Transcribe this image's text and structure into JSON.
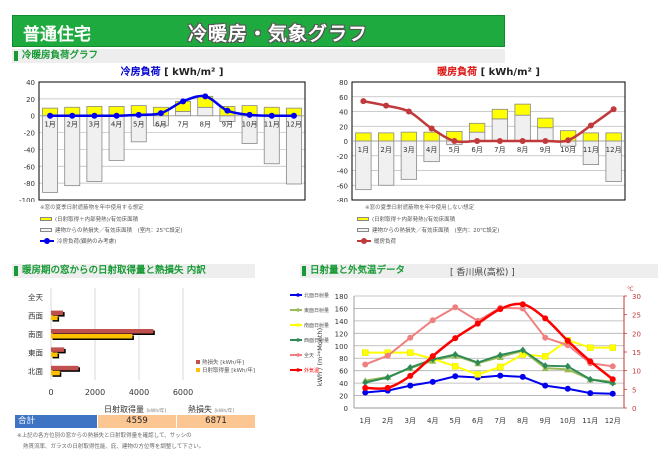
{
  "header": {
    "house_type": "普通住宅",
    "title": "冷暖房・気象グラフ"
  },
  "sections": {
    "load": "冷暖房負荷グラフ",
    "window": "暖房期の窓からの日射取得量と熱損失 内訳",
    "weather": "日射量と外気温データ",
    "location": "[ 香川県(高松) ]"
  },
  "cooling": {
    "note": "※窓の夏季日射遮蔽物を年中使用する想定",
    "legend": [
      "(日射取得＋内部発熱)/有効床面積",
      "建物からの熱損失／有効床面積　(室内：25℃設定)",
      "冷房負荷(顕熱のみ考慮)"
    ]
  },
  "heating": {
    "note": "※窓の夏季日射遮蔽物を年中使用しない想定",
    "legend": [
      "(日射取得＋内部発熱)/有効床面積",
      "建物からの熱損失／有効床面積　(室内：20℃設定)",
      "暖房負荷"
    ]
  },
  "window_totals": {
    "gain_header": "日射取得量",
    "loss_header": "熱損失",
    "unit": "[kWh/年]",
    "row_label": "合計",
    "gain_total": "4559",
    "loss_total": "6871",
    "note_line1": "※上記の各方位別の窓からの熱損失と日射取得量を確認して、サッシの",
    "note_line2": "熱貫流率、ガラスの日射取得性能、庇、建物の方位等を調整して下さい。"
  },
  "chart_data": [
    {
      "id": "cooling",
      "type": "bar",
      "title": "冷房負荷",
      "title_unit": "[ kWh/m² ]",
      "title_color": "#0000cc",
      "categories": [
        "1月",
        "2月",
        "3月",
        "4月",
        "5月",
        "6月",
        "7月",
        "8月",
        "9月",
        "10月",
        "11月",
        "12月"
      ],
      "ylim": [
        -100,
        40
      ],
      "yticks": [
        -100,
        -80,
        -60,
        -40,
        -20,
        0,
        20,
        40
      ],
      "series": [
        {
          "name": "(日射取得＋内部発熱)/有効床面積",
          "kind": "bar-gain",
          "color": "#ffff00",
          "values": [
            9,
            10,
            11,
            11,
            12,
            10,
            17,
            23,
            11,
            12,
            10,
            9
          ]
        },
        {
          "name": "建物からの熱損失／有効床面積",
          "kind": "bar-loss",
          "color": "#f0f0f0",
          "values": [
            -91,
            -83,
            -78,
            -53,
            -31,
            -12,
            5,
            10,
            -7,
            -33,
            -57,
            -81
          ]
        },
        {
          "name": "冷房負荷(顕熱のみ考慮)",
          "kind": "line",
          "color": "#0000ee",
          "values": [
            0,
            0,
            0,
            0,
            1,
            3,
            17,
            23,
            6,
            1,
            0,
            0
          ]
        }
      ]
    },
    {
      "id": "heating",
      "type": "bar",
      "title": "暖房負荷",
      "title_unit": "[ kWh/m² ]",
      "title_color": "#dd1111",
      "categories": [
        "1月",
        "2月",
        "3月",
        "4月",
        "5月",
        "6月",
        "7月",
        "8月",
        "9月",
        "10月",
        "11月",
        "12月"
      ],
      "ylim": [
        -80,
        80
      ],
      "yticks": [
        -80,
        -60,
        -40,
        -20,
        0,
        20,
        40,
        60,
        80
      ],
      "series": [
        {
          "name": "(日射取得＋内部発熱)/有効床面積",
          "kind": "bar-gain",
          "color": "#ffff00",
          "values": [
            11,
            11,
            12,
            12,
            13,
            24,
            43,
            50,
            31,
            14,
            11,
            11
          ]
        },
        {
          "name": "建物からの熱損失／有効床面積",
          "kind": "bar-loss",
          "color": "#f0f0f0",
          "values": [
            -66,
            -60,
            -52,
            -28,
            -5,
            12,
            30,
            35,
            18,
            -7,
            -32,
            -55
          ]
        },
        {
          "name": "暖房負荷",
          "kind": "line",
          "color": "#c0393b",
          "values": [
            54,
            48,
            40,
            17,
            0,
            0,
            0,
            0,
            0,
            1,
            21,
            43
          ]
        }
      ]
    },
    {
      "id": "window",
      "type": "bar",
      "orientation": "horizontal",
      "categories": [
        "全天",
        "西面",
        "南面",
        "東面",
        "北面"
      ],
      "xlim": [
        0,
        6000
      ],
      "xticks": [
        0,
        2000,
        4000,
        6000
      ],
      "series": [
        {
          "name": "熱損失 [kWh/年]",
          "color": "#c0504d",
          "values": [
            0,
            550,
            4650,
            600,
            1250
          ]
        },
        {
          "name": "日射取得量 [kWh/年]",
          "color": "#ffc000",
          "values": [
            0,
            300,
            3700,
            300,
            400
          ]
        }
      ],
      "legend": "bottom-right"
    },
    {
      "id": "weather",
      "type": "line",
      "categories": [
        "1月",
        "2月",
        "3月",
        "4月",
        "5月",
        "6月",
        "7月",
        "8月",
        "9月",
        "10月",
        "11月",
        "12月"
      ],
      "ylabel": "kWh / (m²*Month)",
      "ylim": [
        0,
        180
      ],
      "yticks": [
        0,
        20,
        40,
        60,
        80,
        100,
        120,
        140,
        160,
        180
      ],
      "y2label": "℃",
      "y2lim": [
        0,
        30
      ],
      "y2ticks": [
        0,
        5,
        10,
        15,
        20,
        25,
        30
      ],
      "series": [
        {
          "name": "北面日射量",
          "axis": "left",
          "color": "#0000ee",
          "marker": "circle",
          "values": [
            25,
            28,
            36,
            42,
            51,
            49,
            52,
            50,
            36,
            31,
            24,
            23
          ]
        },
        {
          "name": "東面日射量",
          "axis": "left",
          "color": "#9bbb59",
          "marker": "triangle",
          "values": [
            44,
            50,
            64,
            76,
            84,
            72,
            82,
            92,
            64,
            62,
            46,
            42
          ]
        },
        {
          "name": "南面日射量",
          "axis": "left",
          "color": "#ffff00",
          "marker": "square",
          "values": [
            89,
            89,
            89,
            79,
            67,
            54,
            66,
            86,
            83,
            109,
            97,
            97
          ]
        },
        {
          "name": "西面日射量",
          "axis": "left",
          "color": "#2e8b57",
          "marker": "diamond",
          "values": [
            41,
            49,
            65,
            78,
            86,
            73,
            85,
            93,
            68,
            67,
            46,
            40
          ]
        },
        {
          "name": "全天",
          "axis": "left",
          "color": "#f08080",
          "marker": "circle",
          "values": [
            70,
            84,
            113,
            141,
            162,
            140,
            161,
            160,
            113,
            101,
            72,
            67
          ]
        },
        {
          "name": "外気温",
          "axis": "right",
          "color": "#ff0000",
          "marker": "circle",
          "values": [
            5.4,
            5.4,
            8.6,
            13.9,
            18.7,
            22.6,
            26.5,
            27.8,
            24.0,
            18.0,
            12.5,
            7.7
          ]
        }
      ],
      "grid": true,
      "legend": "left"
    }
  ]
}
